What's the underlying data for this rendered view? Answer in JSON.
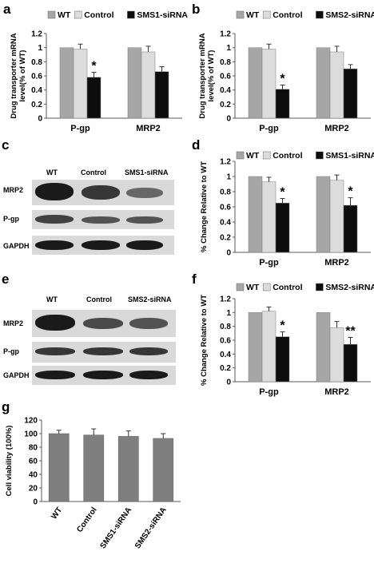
{
  "colors": {
    "wt": "#a6a6a6",
    "control": "#dcdcdc",
    "sirna": "#0d0d0d",
    "axis": "#595959"
  },
  "panels": {
    "a": "a",
    "b": "b",
    "c": "c",
    "d": "d",
    "e": "e",
    "f": "f",
    "g": "g"
  },
  "blot_c": {
    "lanes": [
      "WT",
      "Control",
      "SMS1-siRNA"
    ],
    "rows": [
      "MRP2",
      "P-gp",
      "GAPDH"
    ],
    "band_intensity": [
      [
        1.0,
        0.85,
        0.55
      ],
      [
        0.8,
        0.7,
        0.7
      ],
      [
        0.95,
        0.95,
        0.95
      ]
    ]
  },
  "blot_e": {
    "lanes": [
      "WT",
      "Control",
      "SMS2-siRNA"
    ],
    "rows": [
      "MRP2",
      "P-gp",
      "GAPDH"
    ],
    "band_intensity": [
      [
        1.0,
        0.75,
        0.7
      ],
      [
        0.85,
        0.85,
        0.85
      ],
      [
        0.95,
        0.95,
        0.95
      ]
    ]
  },
  "chart_data": [
    {
      "id": "a",
      "type": "bar",
      "categories": [
        "P-gp",
        "MRP2"
      ],
      "series": [
        {
          "name": "WT",
          "values": [
            1.0,
            1.0
          ],
          "errors": [
            0.0,
            0.0
          ]
        },
        {
          "name": "Control",
          "values": [
            0.98,
            0.94
          ],
          "errors": [
            0.07,
            0.08
          ]
        },
        {
          "name": "SMS1-siRNA",
          "values": [
            0.58,
            0.66
          ],
          "errors": [
            0.07,
            0.07
          ]
        }
      ],
      "annotations": [
        {
          "category": 0,
          "series": 2,
          "text": "*"
        }
      ],
      "ylabel": "Drug transporter mRNA level(% of WT)",
      "ylim": [
        0,
        1.2
      ],
      "yticks": [
        "0",
        "0.2",
        "0.4",
        "0.6",
        "0.8",
        "1",
        "1.2"
      ],
      "legend": "top"
    },
    {
      "id": "b",
      "type": "bar",
      "categories": [
        "P-gp",
        "MRP2"
      ],
      "series": [
        {
          "name": "WT",
          "values": [
            1.0,
            1.0
          ],
          "errors": [
            0.0,
            0.0
          ]
        },
        {
          "name": "Control",
          "values": [
            0.98,
            0.94
          ],
          "errors": [
            0.07,
            0.08
          ]
        },
        {
          "name": "SMS2-siRNA",
          "values": [
            0.41,
            0.7
          ],
          "errors": [
            0.06,
            0.06
          ]
        }
      ],
      "annotations": [
        {
          "category": 0,
          "series": 2,
          "text": "*"
        }
      ],
      "ylabel": "Drug transporter mRNA level(% of WT)",
      "ylim": [
        0,
        1.2
      ],
      "yticks": [
        "0",
        "0.2",
        "0.4",
        "0.6",
        "0.8",
        "1",
        "1.2"
      ],
      "legend": "top"
    },
    {
      "id": "d",
      "type": "bar",
      "categories": [
        "P-gp",
        "MRP2"
      ],
      "series": [
        {
          "name": "WT",
          "values": [
            1.0,
            1.0
          ],
          "errors": [
            0.0,
            0.0
          ]
        },
        {
          "name": "Control",
          "values": [
            0.93,
            0.95
          ],
          "errors": [
            0.06,
            0.07
          ]
        },
        {
          "name": "SMS1-siRNA",
          "values": [
            0.65,
            0.62
          ],
          "errors": [
            0.06,
            0.1
          ]
        }
      ],
      "annotations": [
        {
          "category": 0,
          "series": 2,
          "text": "*"
        },
        {
          "category": 1,
          "series": 2,
          "text": "*"
        }
      ],
      "ylabel": "% Change Relative to WT",
      "ylim": [
        0,
        1.2
      ],
      "yticks": [
        "0",
        "0.2",
        "0.4",
        "0.6",
        "0.8",
        "1",
        "1.2"
      ],
      "legend": "top"
    },
    {
      "id": "f",
      "type": "bar",
      "categories": [
        "P-gp",
        "MRP2"
      ],
      "series": [
        {
          "name": "WT",
          "values": [
            1.0,
            1.0
          ],
          "errors": [
            0.0,
            0.0
          ]
        },
        {
          "name": "Control",
          "values": [
            1.02,
            0.78
          ],
          "errors": [
            0.06,
            0.09
          ]
        },
        {
          "name": "SMS2-siRNA",
          "values": [
            0.65,
            0.54
          ],
          "errors": [
            0.07,
            0.1
          ]
        }
      ],
      "annotations": [
        {
          "category": 0,
          "series": 2,
          "text": "*"
        },
        {
          "category": 1,
          "series": 2,
          "text": "**"
        }
      ],
      "ylabel": "% Change Relative to WT",
      "ylim": [
        0,
        1.2
      ],
      "yticks": [
        "0",
        "0.2",
        "0.4",
        "0.6",
        "0.8",
        "1",
        "1.2"
      ],
      "legend": "top"
    },
    {
      "id": "g",
      "type": "bar",
      "categories": [
        "WT",
        "Control",
        "SMS1-siRNA",
        "SMS2-siRNA"
      ],
      "values": [
        100,
        98,
        96,
        93
      ],
      "errors": [
        5,
        9,
        8,
        7
      ],
      "ylabel": "Cell viability (100%)",
      "ylim": [
        0,
        120
      ],
      "yticks": [
        "0",
        "20",
        "40",
        "60",
        "80",
        "100",
        "120"
      ]
    }
  ]
}
